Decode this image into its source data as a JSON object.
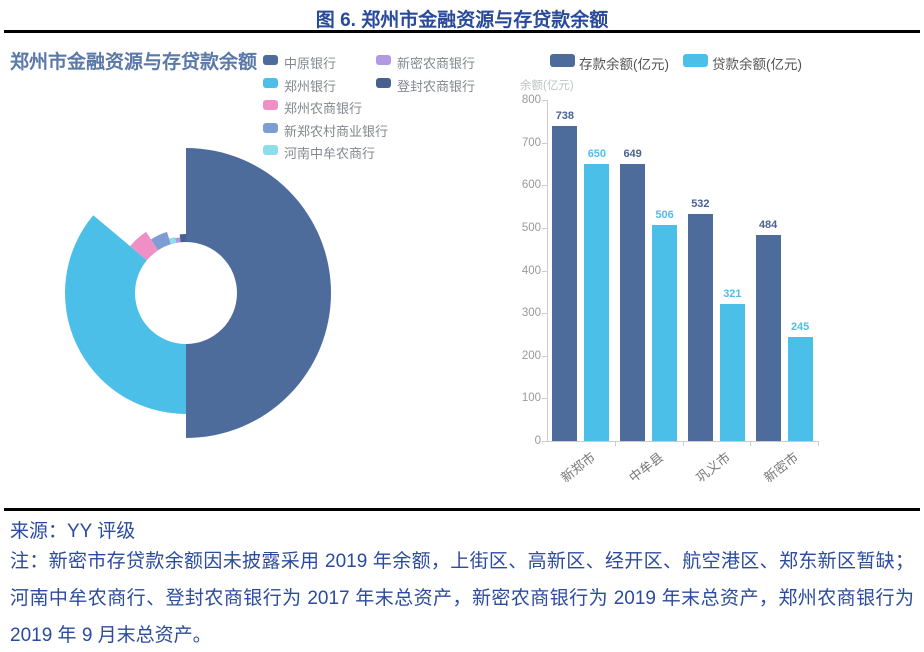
{
  "figure": {
    "title": "图 6. 郑州市金融资源与存贷款余额",
    "source": "来源：YY 评级",
    "note": "注：新密市存贷款余额因未披露采用 2019 年余额，上街区、高新区、经开区、航空港区、郑东新区暂缺；河南中牟农商行、登封农商银行为 2017 年末总资产，新密农商银行为 2019 年末总资产，郑州农商银行为 2019 年 9 月末总资产。"
  },
  "colors": {
    "title_blue": "#29499B",
    "panel_title_blue": "#5A79A7",
    "deposit_dark": "#4D6C9B",
    "loan_cyan": "#4CBFE8",
    "axis_gray": "#CCCCCC",
    "tick_text_gray": "#999999",
    "rule_black": "#000000"
  },
  "chart_data": [
    {
      "type": "pie",
      "title": "郑州市金融资源与存贷款余额",
      "style": "rose-donut (radius varies with value), white inner hole",
      "inner_radius": 51,
      "legend_position": "top-right, two columns",
      "segments": [
        {
          "label": "中原银行",
          "percent": 50.0,
          "color": "#4D6C9B",
          "outer_radius": 145
        },
        {
          "label": "郑州银行",
          "percent": 36.1,
          "color": "#4CBFE8",
          "outer_radius": 121
        },
        {
          "label": "郑州农商银行",
          "percent": 4.7,
          "color": "#F08EC6",
          "outer_radius": 73
        },
        {
          "label": "新郑农村商业银行",
          "percent": 4.4,
          "color": "#7E9DD3",
          "outer_radius": 64
        },
        {
          "label": "河南中牟农商行",
          "percent": 1.7,
          "color": "#8CDEEB",
          "outer_radius": 57
        },
        {
          "label": "新密农商银行",
          "percent": 1.4,
          "color": "#B399E2",
          "outer_radius": 56
        },
        {
          "label": "登封农商银行",
          "percent": 1.7,
          "color": "#47628F",
          "outer_radius": 59
        }
      ]
    },
    {
      "type": "bar",
      "categories": [
        "新郑市",
        "中牟县",
        "巩义市",
        "新密市"
      ],
      "series": [
        {
          "name": "存款余额(亿元)",
          "color": "#4D6C9B",
          "label_color": "#4A6390",
          "values": [
            738,
            649,
            532,
            484
          ]
        },
        {
          "name": "贷款余额(亿元)",
          "color": "#4CBFE8",
          "label_color": "#4FBEE8",
          "values": [
            650,
            506,
            321,
            245
          ]
        }
      ],
      "ylabel": "余额(亿元)",
      "ylim": [
        0,
        800
      ],
      "ytick_step": 100,
      "grid": false,
      "legend_position": "top",
      "xlabel_rotation_deg": -38
    }
  ]
}
